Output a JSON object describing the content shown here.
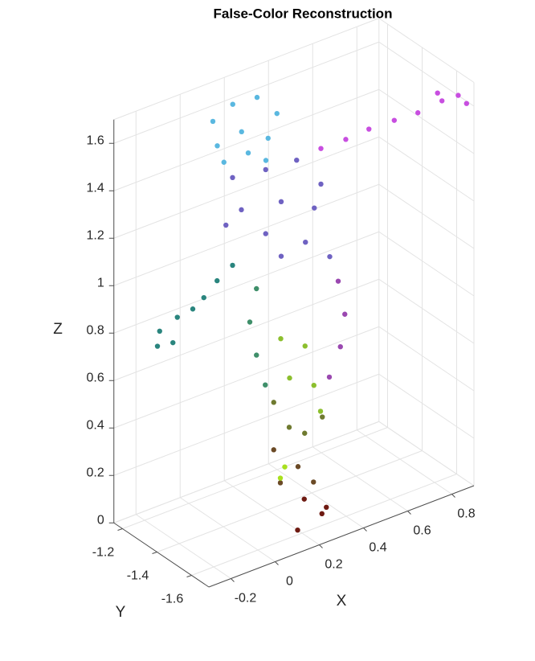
{
  "chart_data": {
    "type": "scatter3d",
    "title": "False-Color Reconstruction",
    "xlabel": "X",
    "ylabel": "Y",
    "zlabel": "Z",
    "xlim": [
      -0.3,
      0.9
    ],
    "ylim": [
      -1.7,
      -1.15
    ],
    "zlim": [
      0,
      1.7
    ],
    "xticks": [
      -0.2,
      0,
      0.2,
      0.4,
      0.6,
      0.8
    ],
    "yticks": [
      -1.6,
      -1.4,
      -1.2
    ],
    "zticks": [
      0,
      0.2,
      0.4,
      0.6,
      0.8,
      1,
      1.2,
      1.4,
      1.6
    ],
    "grid": true,
    "series": [
      {
        "color": "#5ab8e0",
        "x": [
          0.07,
          0.16,
          0.27,
          0.36,
          0.32,
          0.2,
          0.09,
          0.23,
          0.12,
          0.31
        ],
        "y": [
          -1.25,
          -1.25,
          -1.25,
          -1.25,
          -1.25,
          -1.25,
          -1.25,
          -1.25,
          -1.25,
          -1.25
        ],
        "z": [
          1.61,
          1.65,
          1.64,
          1.54,
          1.45,
          1.52,
          1.5,
          1.42,
          1.42,
          1.36
        ]
      },
      {
        "color": "#c84ee0",
        "x": [
          0.52,
          0.57,
          0.62,
          0.68,
          0.74,
          0.81,
          0.86,
          0.89,
          0.79
        ],
        "y": [
          -1.3,
          -1.38,
          -1.45,
          -1.52,
          -1.58,
          -1.63,
          -1.66,
          -1.67,
          -1.63
        ],
        "z": [
          1.36,
          1.42,
          1.48,
          1.53,
          1.57,
          1.62,
          1.64,
          1.6,
          1.66
        ]
      },
      {
        "color": "#2a857e",
        "x": [
          0.12,
          0.05,
          -0.01,
          -0.06,
          -0.13,
          -0.21,
          -0.22,
          -0.15
        ],
        "y": [
          -1.3,
          -1.3,
          -1.3,
          -1.3,
          -1.3,
          -1.3,
          -1.3,
          -1.3
        ],
        "z": [
          1.01,
          0.97,
          0.92,
          0.89,
          0.88,
          0.85,
          0.79,
          0.78
        ]
      },
      {
        "color": "#6f62c2",
        "x": [
          0.12,
          0.27,
          0.41,
          0.52,
          0.49,
          0.34,
          0.16,
          0.27,
          0.45,
          0.56,
          0.09,
          0.34
        ],
        "y": [
          -1.3,
          -1.3,
          -1.3,
          -1.3,
          -1.3,
          -1.3,
          -1.3,
          -1.3,
          -1.3,
          -1.3,
          -1.3,
          -1.3
        ],
        "z": [
          1.38,
          1.36,
          1.35,
          1.21,
          1.12,
          1.2,
          1.23,
          1.09,
          0.99,
          0.89,
          1.19,
          0.97
        ]
      },
      {
        "color": "#3f8f6a",
        "x": [
          0.15,
          0.12,
          0.15,
          0.19
        ],
        "y": [
          -1.4,
          -1.4,
          -1.4,
          -1.4
        ],
        "z": [
          0.95,
          0.82,
          0.67,
          0.53
        ]
      },
      {
        "color": "#9a48b0",
        "x": [
          0.52,
          0.55,
          0.53,
          0.48
        ],
        "y": [
          -1.4,
          -1.4,
          -1.4,
          -1.4
        ],
        "z": [
          0.85,
          0.7,
          0.57,
          0.46
        ]
      },
      {
        "color": "#8cbf2e",
        "x": [
          0.26,
          0.37,
          0.3,
          0.41,
          0.44
        ],
        "y": [
          -1.4,
          -1.4,
          -1.4,
          -1.4,
          -1.4
        ],
        "z": [
          0.7,
          0.63,
          0.52,
          0.45,
          0.33
        ]
      },
      {
        "color": "#6f7a30",
        "x": [
          0.15,
          0.22,
          0.29,
          0.37
        ],
        "y": [
          -1.5,
          -1.5,
          -1.5,
          -1.5
        ],
        "z": [
          0.52,
          0.39,
          0.34,
          0.38
        ]
      },
      {
        "color": "#6b4a26",
        "x": [
          0.15,
          0.26,
          0.33,
          0.18
        ],
        "y": [
          -1.5,
          -1.5,
          -1.5,
          -1.5
        ],
        "z": [
          0.32,
          0.21,
          0.12,
          0.17
        ]
      },
      {
        "color": "#a8e01e",
        "x": [
          0.2,
          0.18
        ],
        "y": [
          -1.5,
          -1.5
        ],
        "z": [
          0.23,
          0.19
        ]
      },
      {
        "color": "#6e1a12",
        "x": [
          0.21,
          0.29,
          0.18,
          0.31
        ],
        "y": [
          -1.6,
          -1.6,
          -1.6,
          -1.6
        ],
        "z": [
          0.14,
          0.05,
          0.02,
          0.07
        ]
      }
    ]
  }
}
